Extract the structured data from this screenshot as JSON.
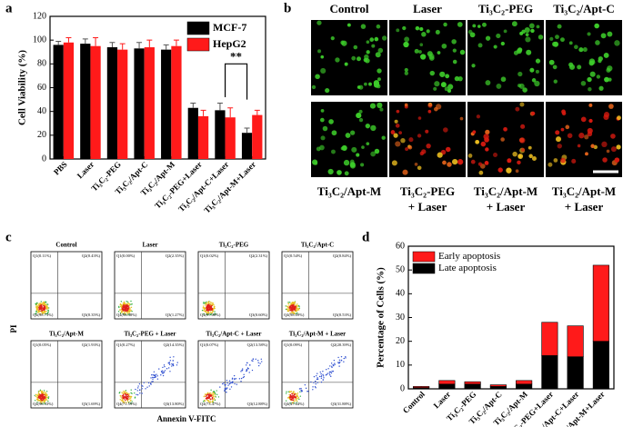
{
  "panel_labels": [
    "a",
    "b",
    "c",
    "d"
  ],
  "chart_data": [
    {
      "type": "bar",
      "ylabel": "Cell Viability (%)",
      "categories": [
        "PBS",
        "Laser",
        "Ti₃C₂-PEG",
        "Ti₃C₂/Apt-C",
        "Ti₃C₂/Apt-M",
        "Ti₃C₂-PEG+Laser",
        "Ti₃C₂/Apt-C+Laser",
        "Ti₃C₂/Apt-M+Laser"
      ],
      "series": [
        {
          "name": "MCF-7",
          "color": "#000000",
          "values": [
            96,
            97,
            94,
            93,
            92,
            43,
            41,
            22
          ],
          "errors": [
            3,
            4,
            4,
            5,
            4,
            4,
            6,
            4
          ]
        },
        {
          "name": "HepG2",
          "color": "#ff1a1a",
          "values": [
            98,
            95,
            92,
            94,
            95,
            36,
            35,
            37
          ],
          "errors": [
            4,
            7,
            5,
            6,
            5,
            5,
            8,
            4
          ]
        }
      ],
      "ylim": [
        0,
        120
      ],
      "yticks": [
        0,
        20,
        40,
        60,
        80,
        100,
        120
      ],
      "legend": "upper right",
      "annotations": [
        "**"
      ]
    },
    {
      "type": "stacked_bar",
      "ylabel": "Percentage of Cells (%)",
      "categories": [
        "Control",
        "Laser",
        "Ti₃C₂-PEG",
        "Ti₃C₂/Apt-C",
        "Ti₃C₂/Apt-M",
        "Ti₃C₂-PEG+Laser",
        "Ti₃C₂/Apt-C+Laser",
        "Ti₃C₂/Apt-M+Laser"
      ],
      "series": [
        {
          "name": "Late apoptosis",
          "color": "#000000",
          "values": [
            0.5,
            2.0,
            2.0,
            1.0,
            2.0,
            14,
            13.5,
            20
          ]
        },
        {
          "name": "Early apoptosis",
          "color": "#ff1a1a",
          "values": [
            0.5,
            1.5,
            1.0,
            0.7,
            1.5,
            14,
            13,
            32
          ]
        }
      ],
      "ylim": [
        0,
        60
      ],
      "yticks": [
        0,
        10,
        20,
        30,
        40,
        50,
        60
      ],
      "legend": "upper left"
    }
  ],
  "microscopy": {
    "top_labels": [
      "Control",
      "Laser",
      "Ti₃C₂-PEG",
      "Ti₃C₂/Apt-C"
    ],
    "bottom_labels": [
      [
        "Ti₃C₂/Apt-M"
      ],
      [
        "Ti₃C₂-PEG",
        "+ Laser"
      ],
      [
        "Ti₃C₂/Apt-M",
        "+ Laser"
      ],
      [
        "Ti₃C₂/Apt-M",
        "+ Laser"
      ]
    ]
  },
  "flow": {
    "ylabel": "PI",
    "xlabel": "Annexin V-FITC",
    "plots": [
      {
        "title": "Control",
        "quadrants": [
          "Q1(0.11%)",
          "Q2(0.43%)",
          "Q4(98.73%)",
          "Q3(0.35%)"
        ]
      },
      {
        "title": "Laser",
        "quadrants": [
          "Q1(0.00%)",
          "Q2(2.35%)",
          "Q4(96.38%)",
          "Q3(1.27%)"
        ]
      },
      {
        "title": "Ti₃C₂-PEG",
        "quadrants": [
          "Q1(0.02%)",
          "Q2(2.31%)",
          "Q4(97.08%)",
          "Q3(0.60%)"
        ]
      },
      {
        "title": "Ti₃C₂/Apt-C",
        "quadrants": [
          "Q1(0.54%)",
          "Q2(0.84%)",
          "Q4(98.09%)",
          "Q3(0.53%)"
        ]
      },
      {
        "title": "Ti₃C₂/Apt-M",
        "quadrants": [
          "Q1(0.05%)",
          "Q2(1.93%)",
          "Q4(96.33%)",
          "Q3(1.69%)"
        ]
      },
      {
        "title": "Ti₃C₂-PEG + Laser",
        "quadrants": [
          "Q1(0.27%)",
          "Q2(14.35%)",
          "Q4(71.59%)",
          "Q3(13.80%)"
        ]
      },
      {
        "title": "Ti₃C₂/Apt-C + Laser",
        "quadrants": [
          "Q1(0.07%)",
          "Q2(13.58%)",
          "Q4(73.47%)",
          "Q3(12.88%)"
        ]
      },
      {
        "title": "Ti₃C₂/Apt-M + Laser",
        "quadrants": [
          "Q1(0.09%)",
          "Q2(20.39%)",
          "Q4(47.64%)",
          "Q3(31.88%)"
        ]
      }
    ]
  }
}
